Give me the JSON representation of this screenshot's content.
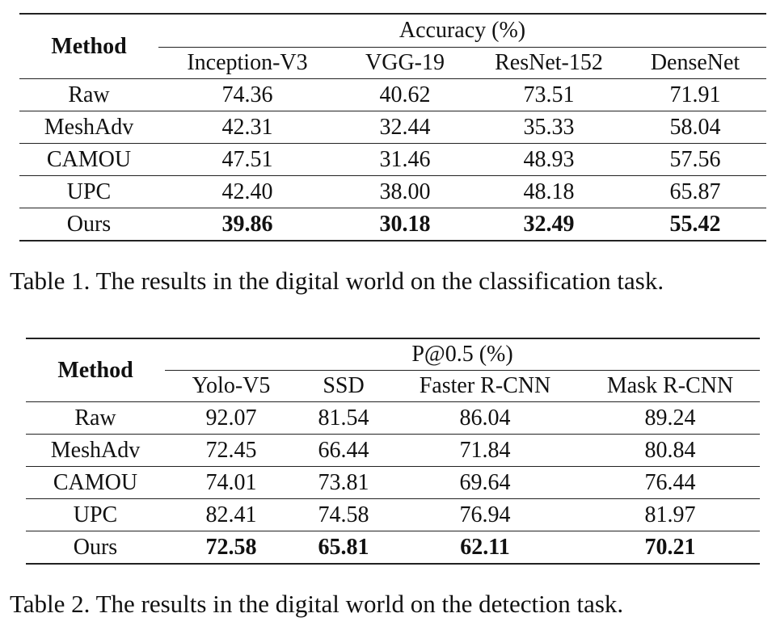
{
  "table1": {
    "method_header": "Method",
    "group_header": "Accuracy (%)",
    "columns": [
      "Inception-V3",
      "VGG-19",
      "ResNet-152",
      "DenseNet"
    ],
    "rows": [
      {
        "method": "Raw",
        "values": [
          "74.36",
          "40.62",
          "73.51",
          "71.91"
        ]
      },
      {
        "method": "MeshAdv",
        "values": [
          "42.31",
          "32.44",
          "35.33",
          "58.04"
        ]
      },
      {
        "method": "CAMOU",
        "values": [
          "47.51",
          "31.46",
          "48.93",
          "57.56"
        ]
      },
      {
        "method": "UPC",
        "values": [
          "42.40",
          "38.00",
          "48.18",
          "65.87"
        ]
      },
      {
        "method": "Ours",
        "values": [
          "39.86",
          "30.18",
          "32.49",
          "55.42"
        ]
      }
    ],
    "caption": "Table 1. The results in the digital world on the classification task."
  },
  "table2": {
    "method_header": "Method",
    "group_header": "P@0.5 (%)",
    "columns": [
      "Yolo-V5",
      "SSD",
      "Faster R-CNN",
      "Mask R-CNN"
    ],
    "rows": [
      {
        "method": "Raw",
        "values": [
          "92.07",
          "81.54",
          "86.04",
          "89.24"
        ]
      },
      {
        "method": "MeshAdv",
        "values": [
          "72.45",
          "66.44",
          "71.84",
          "80.84"
        ]
      },
      {
        "method": "CAMOU",
        "values": [
          "74.01",
          "73.81",
          "69.64",
          "76.44"
        ]
      },
      {
        "method": "UPC",
        "values": [
          "82.41",
          "74.58",
          "76.94",
          "81.97"
        ]
      },
      {
        "method": "Ours",
        "values": [
          "72.58",
          "65.81",
          "62.11",
          "70.21"
        ]
      }
    ],
    "caption": "Table 2. The results in the digital world on the detection task."
  }
}
